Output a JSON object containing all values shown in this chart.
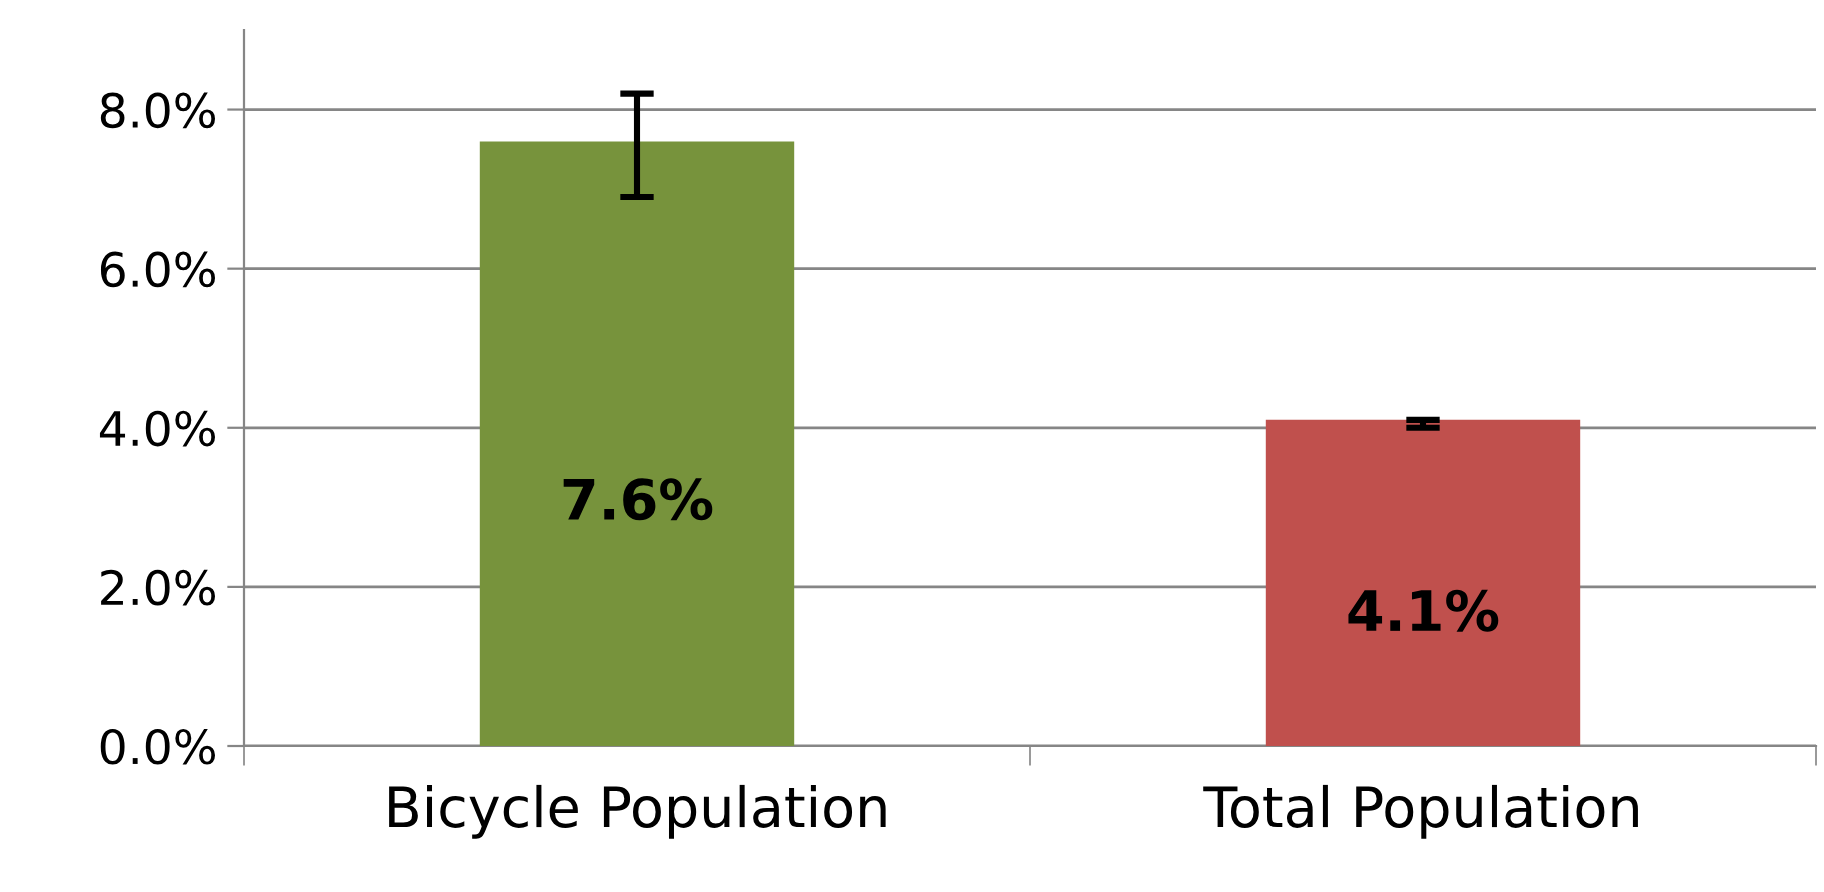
{
  "chart_data": {
    "type": "bar",
    "categories": [
      "Bicycle Population",
      "Total Population"
    ],
    "values": [
      7.6,
      4.1
    ],
    "colors": [
      "#77933c",
      "#c0504d"
    ],
    "errors": [
      [
        6.9,
        8.2
      ],
      [
        4.0,
        4.1
      ]
    ],
    "value_labels": [
      "7.6%",
      "4.1%"
    ],
    "ylim": [
      0,
      9
    ],
    "yticks": [
      {
        "value": 0,
        "label": "0.0%"
      },
      {
        "value": 2,
        "label": "2.0%"
      },
      {
        "value": 4,
        "label": "4.0%"
      },
      {
        "value": 6,
        "label": "6.0%"
      },
      {
        "value": 8,
        "label": "8.0%"
      }
    ],
    "grid": "y",
    "legend": false
  }
}
